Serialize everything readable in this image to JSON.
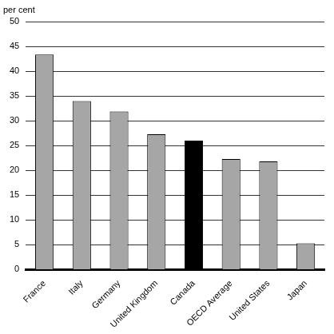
{
  "chart_data": {
    "type": "bar",
    "ylabel": "per cent",
    "categories": [
      "France",
      "Italy",
      "Germany",
      "United Kingdom",
      "Canada",
      "OECD Average",
      "United States",
      "Japan"
    ],
    "values": [
      43.4,
      34,
      31.9,
      27.3,
      26,
      22.3,
      21.8,
      5.3
    ],
    "colors": [
      "#a6a6a6",
      "#a6a6a6",
      "#a6a6a6",
      "#a6a6a6",
      "#000000",
      "#a6a6a6",
      "#a6a6a6",
      "#a6a6a6"
    ],
    "ylim": [
      0,
      50
    ],
    "yticks": [
      0,
      5,
      10,
      15,
      20,
      25,
      30,
      35,
      40,
      45,
      50
    ],
    "grid": true
  }
}
